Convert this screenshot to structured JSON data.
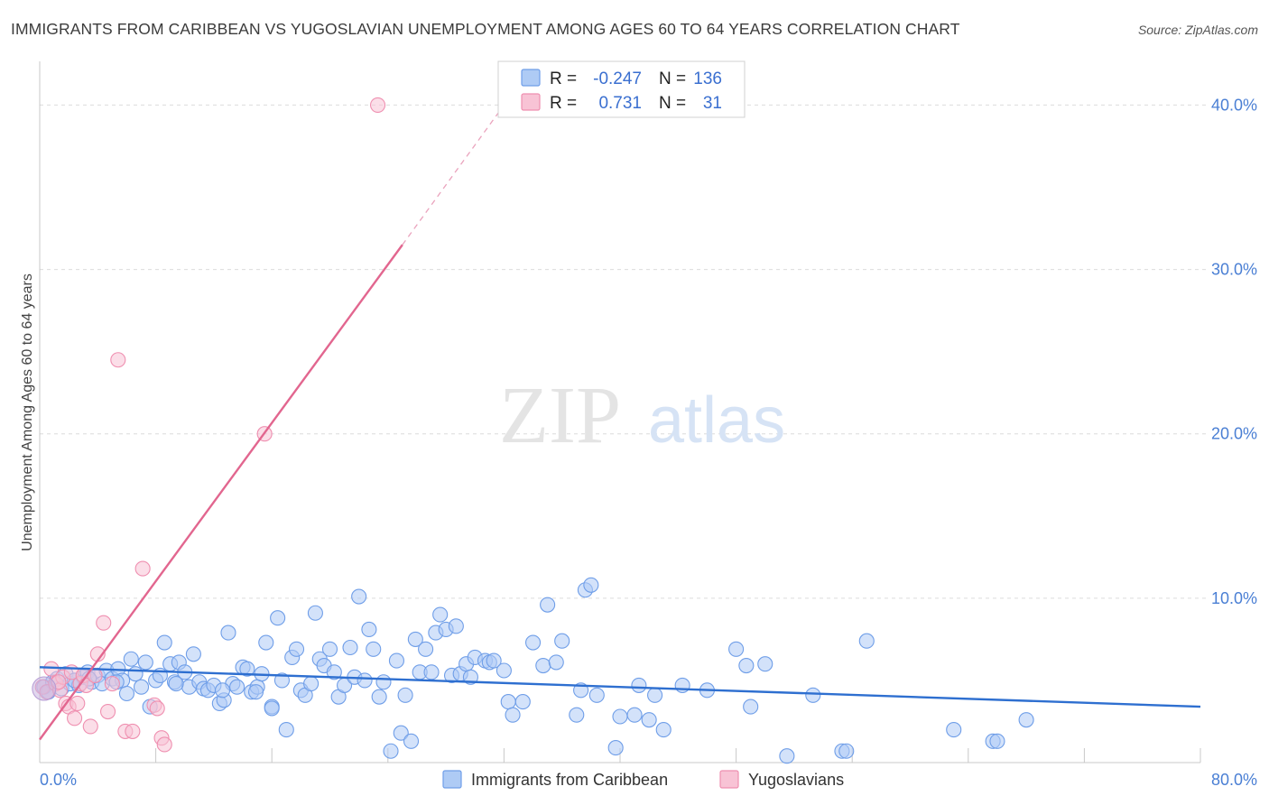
{
  "title": "IMMIGRANTS FROM CARIBBEAN VS YUGOSLAVIAN UNEMPLOYMENT AMONG AGES 60 TO 64 YEARS CORRELATION CHART",
  "source": "Source: ZipAtlas.com",
  "watermark": {
    "zip": "ZIP",
    "atlas": "atlas"
  },
  "legend_top": {
    "series": [
      {
        "r_label": "R =",
        "r_value": "-0.247",
        "n_label": "N =",
        "n_value": "136",
        "color": "#6f9ee8",
        "fill": "#aecbf5"
      },
      {
        "r_label": "R =",
        "r_value": "0.731",
        "n_label": "N =",
        "n_value": "31",
        "color": "#ef8fb0",
        "fill": "#f8c3d5"
      }
    ]
  },
  "legend_bottom": {
    "items": [
      {
        "label": "Immigrants from Caribbean",
        "color": "#6f9ee8",
        "fill": "#aecbf5"
      },
      {
        "label": "Yugoslavians",
        "color": "#ef8fb0",
        "fill": "#f8c3d5"
      }
    ]
  },
  "chart_data": {
    "type": "scatter",
    "title": "IMMIGRANTS FROM CARIBBEAN VS YUGOSLAVIAN UNEMPLOYMENT AMONG AGES 60 TO 64 YEARS CORRELATION CHART",
    "xlabel": "",
    "ylabel": "Unemployment Among Ages 60 to 64 years",
    "xlim": [
      0,
      80
    ],
    "ylim": [
      0,
      42
    ],
    "x_tick_labels": [
      {
        "value": 0,
        "label": "0.0%"
      },
      {
        "value": 80,
        "label": "80.0%"
      }
    ],
    "y_tick_labels": [
      {
        "value": 10,
        "label": "10.0%"
      },
      {
        "value": 20,
        "label": "20.0%"
      },
      {
        "value": 30,
        "label": "30.0%"
      },
      {
        "value": 40,
        "label": "40.0%"
      }
    ],
    "x_minor_ticks": [
      8,
      16,
      24,
      32,
      40,
      48,
      56,
      64,
      72,
      80
    ],
    "series": [
      {
        "name": "Immigrants from Caribbean",
        "color": "#6f9ee8",
        "fill": "#aecbf5",
        "points": [
          [
            0.3,
            4.6
          ],
          [
            0.6,
            4.3
          ],
          [
            0.9,
            4.9
          ],
          [
            1.2,
            5.1
          ],
          [
            1.5,
            4.5
          ],
          [
            1.8,
            5.4
          ],
          [
            2.1,
            4.8
          ],
          [
            2.4,
            5.0
          ],
          [
            2.7,
            4.7
          ],
          [
            3.0,
            5.2
          ],
          [
            3.3,
            5.5
          ],
          [
            3.6,
            4.9
          ],
          [
            4.0,
            5.3
          ],
          [
            4.3,
            4.8
          ],
          [
            4.6,
            5.6
          ],
          [
            5.0,
            5.1
          ],
          [
            5.4,
            5.7
          ],
          [
            5.7,
            5.0
          ],
          [
            6.0,
            4.2
          ],
          [
            6.3,
            6.3
          ],
          [
            6.6,
            5.4
          ],
          [
            7.0,
            4.6
          ],
          [
            7.3,
            6.1
          ],
          [
            7.6,
            3.4
          ],
          [
            8.0,
            5.0
          ],
          [
            8.3,
            5.3
          ],
          [
            8.6,
            7.3
          ],
          [
            9.0,
            6.0
          ],
          [
            9.3,
            4.9
          ],
          [
            9.6,
            6.1
          ],
          [
            10.0,
            5.5
          ],
          [
            10.3,
            4.6
          ],
          [
            10.6,
            6.6
          ],
          [
            11.0,
            4.9
          ],
          [
            11.3,
            4.5
          ],
          [
            11.6,
            4.4
          ],
          [
            12.0,
            4.7
          ],
          [
            12.4,
            3.6
          ],
          [
            12.7,
            3.8
          ],
          [
            13.0,
            7.9
          ],
          [
            13.3,
            4.8
          ],
          [
            13.6,
            4.6
          ],
          [
            14.0,
            5.8
          ],
          [
            14.3,
            5.7
          ],
          [
            14.6,
            4.3
          ],
          [
            15.0,
            4.6
          ],
          [
            15.3,
            5.4
          ],
          [
            15.6,
            7.3
          ],
          [
            16.0,
            3.4
          ],
          [
            16.4,
            8.8
          ],
          [
            16.7,
            5.0
          ],
          [
            17.0,
            2.0
          ],
          [
            17.4,
            6.4
          ],
          [
            17.7,
            6.9
          ],
          [
            18.0,
            4.4
          ],
          [
            18.3,
            4.1
          ],
          [
            18.7,
            4.8
          ],
          [
            19.0,
            9.1
          ],
          [
            19.3,
            6.3
          ],
          [
            19.6,
            5.9
          ],
          [
            20.0,
            6.9
          ],
          [
            20.3,
            5.5
          ],
          [
            20.6,
            4.0
          ],
          [
            21.0,
            4.7
          ],
          [
            21.4,
            7.0
          ],
          [
            21.7,
            5.2
          ],
          [
            22.0,
            10.1
          ],
          [
            22.4,
            5.0
          ],
          [
            22.7,
            8.1
          ],
          [
            23.0,
            6.9
          ],
          [
            23.4,
            4.0
          ],
          [
            23.7,
            4.9
          ],
          [
            24.2,
            0.7
          ],
          [
            24.6,
            6.2
          ],
          [
            24.9,
            1.8
          ],
          [
            25.2,
            4.1
          ],
          [
            25.6,
            1.3
          ],
          [
            25.9,
            7.5
          ],
          [
            26.2,
            5.5
          ],
          [
            26.6,
            6.9
          ],
          [
            27.0,
            5.5
          ],
          [
            27.3,
            7.9
          ],
          [
            27.6,
            9.0
          ],
          [
            28.0,
            8.1
          ],
          [
            28.4,
            5.3
          ],
          [
            28.7,
            8.3
          ],
          [
            29.0,
            5.4
          ],
          [
            29.4,
            6.0
          ],
          [
            29.7,
            5.2
          ],
          [
            30.0,
            6.4
          ],
          [
            30.7,
            6.2
          ],
          [
            31.0,
            6.1
          ],
          [
            31.3,
            6.2
          ],
          [
            32.0,
            5.6
          ],
          [
            32.3,
            3.7
          ],
          [
            32.6,
            2.9
          ],
          [
            33.3,
            3.7
          ],
          [
            34.0,
            7.3
          ],
          [
            34.7,
            5.9
          ],
          [
            35.0,
            9.6
          ],
          [
            35.6,
            6.1
          ],
          [
            36.0,
            7.4
          ],
          [
            37.0,
            2.9
          ],
          [
            37.3,
            4.4
          ],
          [
            37.6,
            10.5
          ],
          [
            38.0,
            10.8
          ],
          [
            38.4,
            4.1
          ],
          [
            39.7,
            0.9
          ],
          [
            40.0,
            2.8
          ],
          [
            41.0,
            2.9
          ],
          [
            41.3,
            4.7
          ],
          [
            42.0,
            2.6
          ],
          [
            42.4,
            4.1
          ],
          [
            43.0,
            2.0
          ],
          [
            44.3,
            4.7
          ],
          [
            46.0,
            4.4
          ],
          [
            48.0,
            6.9
          ],
          [
            48.7,
            5.9
          ],
          [
            49.0,
            3.4
          ],
          [
            50.0,
            6.0
          ],
          [
            51.5,
            0.4
          ],
          [
            53.3,
            4.1
          ],
          [
            55.3,
            0.7
          ],
          [
            55.6,
            0.7
          ],
          [
            57.0,
            7.4
          ],
          [
            63.0,
            2.0
          ],
          [
            65.7,
            1.3
          ],
          [
            66.0,
            1.3
          ],
          [
            68.0,
            2.6
          ],
          [
            16.0,
            3.3
          ],
          [
            2.4,
            5.0
          ],
          [
            3.4,
            5.1
          ],
          [
            5.3,
            4.9
          ],
          [
            9.4,
            4.8
          ],
          [
            12.6,
            4.4
          ],
          [
            14.9,
            4.3
          ]
        ],
        "trend": {
          "x": [
            0,
            80
          ],
          "y": [
            5.8,
            3.4
          ]
        }
      },
      {
        "name": "Yugoslavians",
        "color": "#ef8fb0",
        "fill": "#f8c3d5",
        "points": [
          [
            0.2,
            4.6
          ],
          [
            0.5,
            4.3
          ],
          [
            0.8,
            5.7
          ],
          [
            1.1,
            4.8
          ],
          [
            1.4,
            4.4
          ],
          [
            1.6,
            5.2
          ],
          [
            1.8,
            3.6
          ],
          [
            2.0,
            3.4
          ],
          [
            2.2,
            5.5
          ],
          [
            2.4,
            2.7
          ],
          [
            2.6,
            3.6
          ],
          [
            2.8,
            4.8
          ],
          [
            3.0,
            5.3
          ],
          [
            3.2,
            4.7
          ],
          [
            3.5,
            2.2
          ],
          [
            3.8,
            5.3
          ],
          [
            4.0,
            6.6
          ],
          [
            4.4,
            8.5
          ],
          [
            4.7,
            3.1
          ],
          [
            5.0,
            4.8
          ],
          [
            5.4,
            24.5
          ],
          [
            5.9,
            1.9
          ],
          [
            6.4,
            1.9
          ],
          [
            7.1,
            11.8
          ],
          [
            7.9,
            3.5
          ],
          [
            8.1,
            3.3
          ],
          [
            8.4,
            1.5
          ],
          [
            8.6,
            1.1
          ],
          [
            15.5,
            20.0
          ],
          [
            23.3,
            40.0
          ],
          [
            1.3,
            4.9
          ]
        ],
        "trend": {
          "x": [
            0,
            25
          ],
          "y": [
            1.4,
            31.5
          ]
        },
        "trend_extension": {
          "x": [
            25,
            32
          ],
          "y": [
            31.5,
            40.0
          ]
        }
      }
    ]
  }
}
